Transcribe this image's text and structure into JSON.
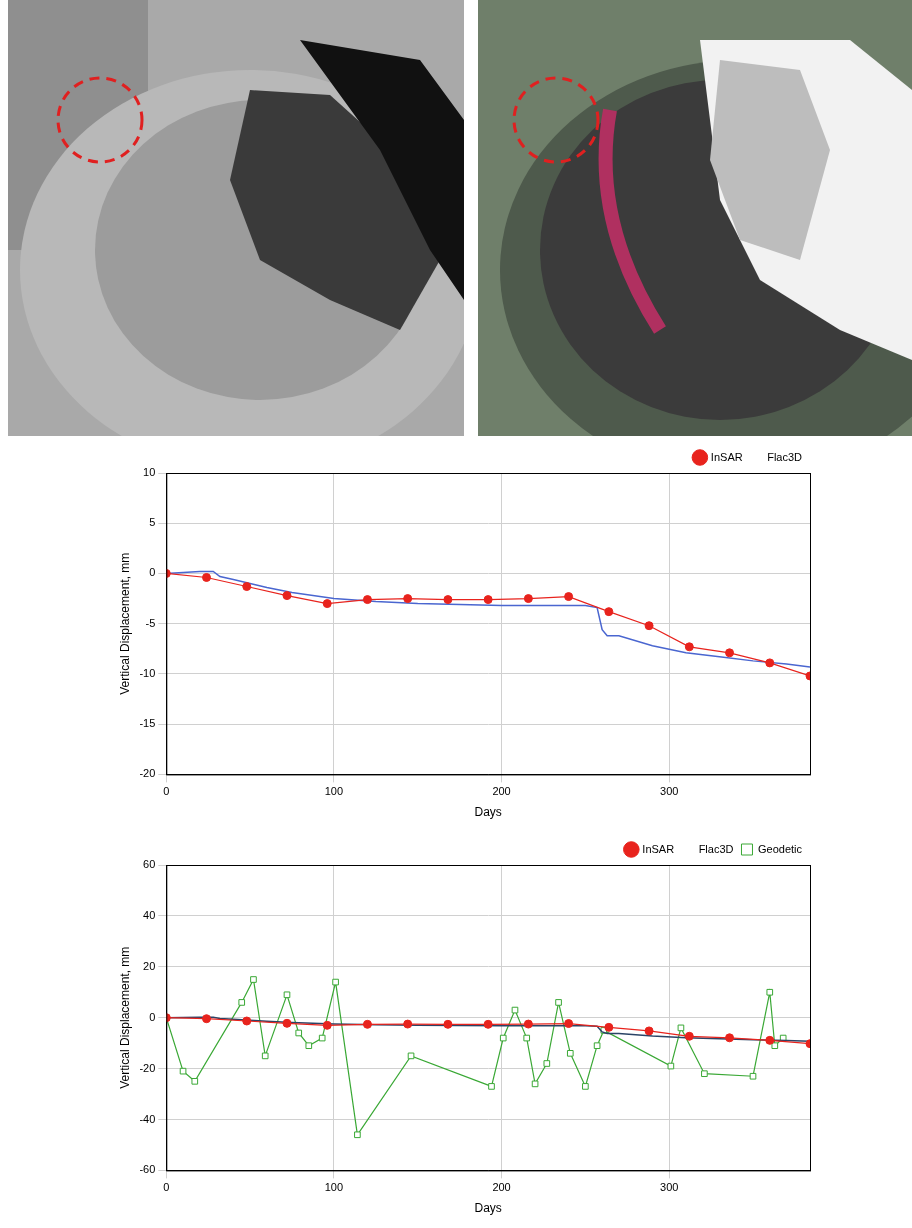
{
  "chart_data": [
    {
      "type": "line",
      "x_label": "Days",
      "y_label": "Vertical Displacement, mm",
      "xlim": [
        0,
        384
      ],
      "xticks": [
        0,
        100,
        200,
        300
      ],
      "ylim": [
        -20,
        10
      ],
      "yticks": [
        -20,
        -15,
        -10,
        -5,
        0,
        5,
        10
      ],
      "grid": true,
      "legend": "top right",
      "series": [
        {
          "name": "InSAR",
          "color": "#e8231d",
          "marker": "circle",
          "line_style": "solid",
          "x": [
            0,
            24,
            48,
            72,
            96,
            120,
            144,
            168,
            192,
            216,
            240,
            264,
            288,
            312,
            336,
            360,
            384
          ],
          "values": [
            0,
            -0.4,
            -1.3,
            -2.2,
            -3.0,
            -2.6,
            -2.5,
            -2.6,
            -2.6,
            -2.5,
            -2.3,
            -3.8,
            -5.2,
            -7.3,
            -7.9,
            -8.9,
            -10.2
          ]
        },
        {
          "name": "Flac3D",
          "color": "#4a66d0",
          "marker": "none",
          "line_style": "solid",
          "x": [
            0,
            10,
            20,
            28,
            32,
            40,
            50,
            60,
            75,
            100,
            125,
            150,
            200,
            250,
            257,
            260,
            263,
            270,
            290,
            310,
            330,
            350,
            370,
            384
          ],
          "values": [
            0,
            0.1,
            0.2,
            0.2,
            -0.3,
            -0.6,
            -1.0,
            -1.4,
            -1.9,
            -2.5,
            -2.8,
            -3.0,
            -3.2,
            -3.2,
            -3.4,
            -5.6,
            -6.2,
            -6.2,
            -7.2,
            -7.9,
            -8.3,
            -8.7,
            -9.0,
            -9.3
          ]
        }
      ]
    },
    {
      "type": "line",
      "x_label": "Days",
      "y_label": "Vertical Displacement, mm",
      "xlim": [
        0,
        384
      ],
      "xticks": [
        0,
        100,
        200,
        300
      ],
      "ylim": [
        -60,
        60
      ],
      "yticks": [
        -60,
        -40,
        -20,
        0,
        20,
        40,
        60
      ],
      "grid": true,
      "legend": "top right",
      "series": [
        {
          "name": "InSAR",
          "color": "#e8231d",
          "marker": "circle",
          "line_style": "solid",
          "x": [
            0,
            24,
            48,
            72,
            96,
            120,
            144,
            168,
            192,
            216,
            240,
            264,
            288,
            312,
            336,
            360,
            384
          ],
          "values": [
            0,
            -0.4,
            -1.3,
            -2.2,
            -3.0,
            -2.6,
            -2.5,
            -2.6,
            -2.6,
            -2.5,
            -2.3,
            -3.8,
            -5.2,
            -7.3,
            -7.9,
            -8.9,
            -10.2
          ]
        },
        {
          "name": "Flac3D",
          "color": "#2b4466",
          "marker": "none",
          "line_style": "solid",
          "x": [
            0,
            10,
            20,
            28,
            32,
            40,
            50,
            60,
            75,
            100,
            125,
            150,
            200,
            250,
            257,
            260,
            263,
            270,
            290,
            310,
            330,
            350,
            370,
            384
          ],
          "values": [
            0,
            0.1,
            0.2,
            0.2,
            -0.3,
            -0.6,
            -1.0,
            -1.4,
            -1.9,
            -2.5,
            -2.8,
            -3.0,
            -3.2,
            -3.2,
            -3.4,
            -5.6,
            -6.2,
            -6.2,
            -7.2,
            -7.9,
            -8.3,
            -8.7,
            -9.0,
            -9.3
          ]
        },
        {
          "name": "Geodetic",
          "color": "#3aa835",
          "marker": "open_square",
          "line_style": "solid",
          "x": [
            0,
            10,
            17,
            45,
            52,
            59,
            72,
            79,
            85,
            93,
            101,
            114,
            146,
            194,
            201,
            208,
            215,
            220,
            227,
            234,
            241,
            250,
            257,
            261,
            301,
            307,
            321,
            350,
            360,
            363,
            368
          ],
          "values": [
            0,
            -21,
            -25,
            6,
            15,
            -15,
            9,
            -6,
            -11,
            -8,
            14,
            -46,
            -15,
            -27,
            -8,
            3,
            -8,
            -26,
            -18,
            6,
            -14,
            -27,
            -11,
            -5,
            -19,
            -4,
            -22,
            -23,
            10,
            -11,
            -8
          ]
        }
      ]
    }
  ]
}
